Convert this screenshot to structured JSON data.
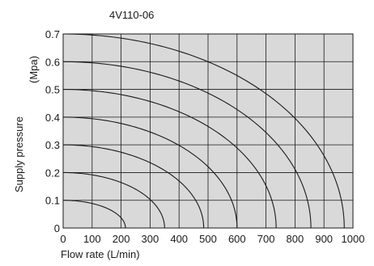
{
  "chart_data": {
    "type": "line",
    "title": "4V110-06",
    "xlabel": "Flow rate (L/min)",
    "ylabel": "Supply pressure",
    "yunit": "(Mpa)",
    "xlim": [
      0,
      1000
    ],
    "ylim": [
      0,
      0.7
    ],
    "x_ticks": [
      "0",
      "100",
      "200",
      "300",
      "400",
      "500",
      "600",
      "700",
      "800",
      "900",
      "1000"
    ],
    "y_ticks": [
      "0",
      "0.1",
      "0.2",
      "0.3",
      "0.4",
      "0.5",
      "0.6",
      "0.7"
    ],
    "grid": true,
    "background_color": "#d9d9d9",
    "line_color": "#1a1a1a",
    "series": [
      {
        "supply_pressure": 0.1,
        "max_flow": 215
      },
      {
        "supply_pressure": 0.2,
        "max_flow": 350
      },
      {
        "supply_pressure": 0.3,
        "max_flow": 485
      },
      {
        "supply_pressure": 0.4,
        "max_flow": 600
      },
      {
        "supply_pressure": 0.5,
        "max_flow": 735
      },
      {
        "supply_pressure": 0.6,
        "max_flow": 855
      },
      {
        "supply_pressure": 0.7,
        "max_flow": 970
      }
    ]
  }
}
